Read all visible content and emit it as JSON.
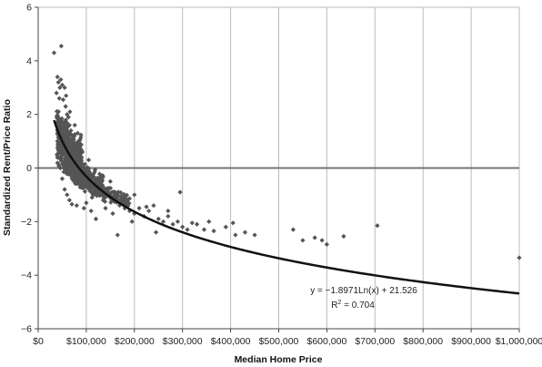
{
  "chart_data": {
    "type": "scatter",
    "xlabel": "Median Home Price",
    "ylabel": "Standardized Rent/Price Ratio",
    "xlim": [
      0,
      1000000
    ],
    "ylim": [
      -6,
      6
    ],
    "x_tick_values": [
      0,
      100000,
      200000,
      300000,
      400000,
      500000,
      600000,
      700000,
      800000,
      900000,
      1000000
    ],
    "x_tick_labels": [
      "$0",
      "$100,000",
      "$200,000",
      "$300,000",
      "$400,000",
      "$500,000",
      "$600,000",
      "$700,000",
      "$800,000",
      "$900,000",
      "$1,000,000"
    ],
    "y_tick_values": [
      -6,
      -4,
      -2,
      0,
      2,
      4,
      6
    ],
    "y_tick_labels": [
      "−6",
      "−4",
      "−2",
      "0",
      "2",
      "4",
      "6"
    ],
    "grid": "vertical",
    "reference_line": {
      "y": 0
    },
    "trendline": {
      "type": "logarithmic",
      "a": -1.8971,
      "b": 21.526,
      "x_range": [
        33000,
        1000000
      ]
    },
    "annotation": {
      "equation": "y = −1.8971Ln(x) + 21.526",
      "r2_prefix": "R",
      "r2_sup": "2",
      "r2_value": " = 0.704"
    },
    "colors": {
      "points": "#555555",
      "trendline": "#111111",
      "reference": "#777777",
      "grid": "#bbbbbb"
    },
    "points": [
      [
        33000,
        4.3
      ],
      [
        48000,
        4.55
      ],
      [
        40000,
        3.4
      ],
      [
        42000,
        3.2
      ],
      [
        45000,
        3.0
      ],
      [
        50000,
        3.1
      ],
      [
        38000,
        2.8
      ],
      [
        44000,
        2.6
      ],
      [
        52000,
        2.55
      ],
      [
        60000,
        2.0
      ],
      [
        65000,
        1.6
      ],
      [
        70000,
        1.2
      ],
      [
        75000,
        0.9
      ],
      [
        80000,
        0.6
      ],
      [
        90000,
        0.4
      ],
      [
        57000,
        2.3
      ],
      [
        63000,
        1.9
      ],
      [
        68000,
        1.4
      ],
      [
        72000,
        1.1
      ],
      [
        78000,
        0.7
      ],
      [
        85000,
        0.2
      ],
      [
        95000,
        0.0
      ],
      [
        100000,
        -0.2
      ],
      [
        110000,
        -0.4
      ],
      [
        120000,
        -0.6
      ],
      [
        130000,
        -0.8
      ],
      [
        140000,
        -0.9
      ],
      [
        150000,
        -1.0
      ],
      [
        160000,
        -1.2
      ],
      [
        170000,
        -1.3
      ],
      [
        180000,
        -1.5
      ],
      [
        190000,
        -1.6
      ],
      [
        200000,
        -1.7
      ],
      [
        210000,
        -1.5
      ],
      [
        220000,
        -1.8
      ],
      [
        230000,
        -1.6
      ],
      [
        240000,
        -1.4
      ],
      [
        250000,
        -1.9
      ],
      [
        260000,
        -2.0
      ],
      [
        270000,
        -1.8
      ],
      [
        280000,
        -2.1
      ],
      [
        290000,
        -2.0
      ],
      [
        295000,
        -0.9
      ],
      [
        300000,
        -2.2
      ],
      [
        320000,
        -2.05
      ],
      [
        330000,
        -2.1
      ],
      [
        345000,
        -2.3
      ],
      [
        355000,
        -2.0
      ],
      [
        390000,
        -2.2
      ],
      [
        405000,
        -2.05
      ],
      [
        410000,
        -2.5
      ],
      [
        430000,
        -2.4
      ],
      [
        450000,
        -2.5
      ],
      [
        530000,
        -2.3
      ],
      [
        550000,
        -2.7
      ],
      [
        575000,
        -2.6
      ],
      [
        590000,
        -2.7
      ],
      [
        600000,
        -2.85
      ],
      [
        635000,
        -2.55
      ],
      [
        705000,
        -2.15
      ],
      [
        1000000,
        -3.35
      ],
      [
        165000,
        -2.5
      ],
      [
        120000,
        -1.9
      ],
      [
        110000,
        -1.6
      ],
      [
        135000,
        -1.2
      ],
      [
        180000,
        -1.1
      ],
      [
        200000,
        -1.0
      ],
      [
        150000,
        -0.5
      ],
      [
        130000,
        -0.3
      ],
      [
        105000,
        0.3
      ],
      [
        92000,
        0.6
      ],
      [
        88000,
        0.9
      ],
      [
        82000,
        1.3
      ],
      [
        76000,
        1.6
      ],
      [
        66000,
        2.1
      ],
      [
        58000,
        2.7
      ],
      [
        55000,
        3.0
      ],
      [
        47000,
        3.3
      ],
      [
        43000,
        1.8
      ],
      [
        40000,
        1.0
      ],
      [
        39000,
        0.5
      ],
      [
        46000,
        0.0
      ],
      [
        50000,
        -0.4
      ],
      [
        55000,
        -0.8
      ],
      [
        60000,
        -1.0
      ],
      [
        65000,
        -1.2
      ],
      [
        70000,
        -1.35
      ],
      [
        80000,
        -1.4
      ],
      [
        95000,
        -1.5
      ],
      [
        100000,
        -1.3
      ],
      [
        112000,
        -1.1
      ],
      [
        125000,
        -1.0
      ],
      [
        140000,
        -1.5
      ],
      [
        155000,
        -1.7
      ],
      [
        245000,
        -2.4
      ],
      [
        225000,
        -1.45
      ],
      [
        270000,
        -1.6
      ],
      [
        310000,
        -2.3
      ],
      [
        365000,
        -2.35
      ],
      [
        195000,
        -2.0
      ]
    ],
    "dense_clusters": [
      {
        "x_range": [
          40000,
          90000
        ],
        "y_center": 0.7,
        "y_spread": 1.4,
        "count": 420
      },
      {
        "x_range": [
          55000,
          135000
        ],
        "y_center": -0.45,
        "y_spread": 0.7,
        "count": 360
      },
      {
        "x_range": [
          90000,
          190000
        ],
        "y_center": -0.95,
        "y_spread": 0.45,
        "count": 140
      },
      {
        "x_range": [
          38000,
          60000
        ],
        "y_center": 2.1,
        "y_spread": 0.7,
        "count": 90
      }
    ]
  }
}
